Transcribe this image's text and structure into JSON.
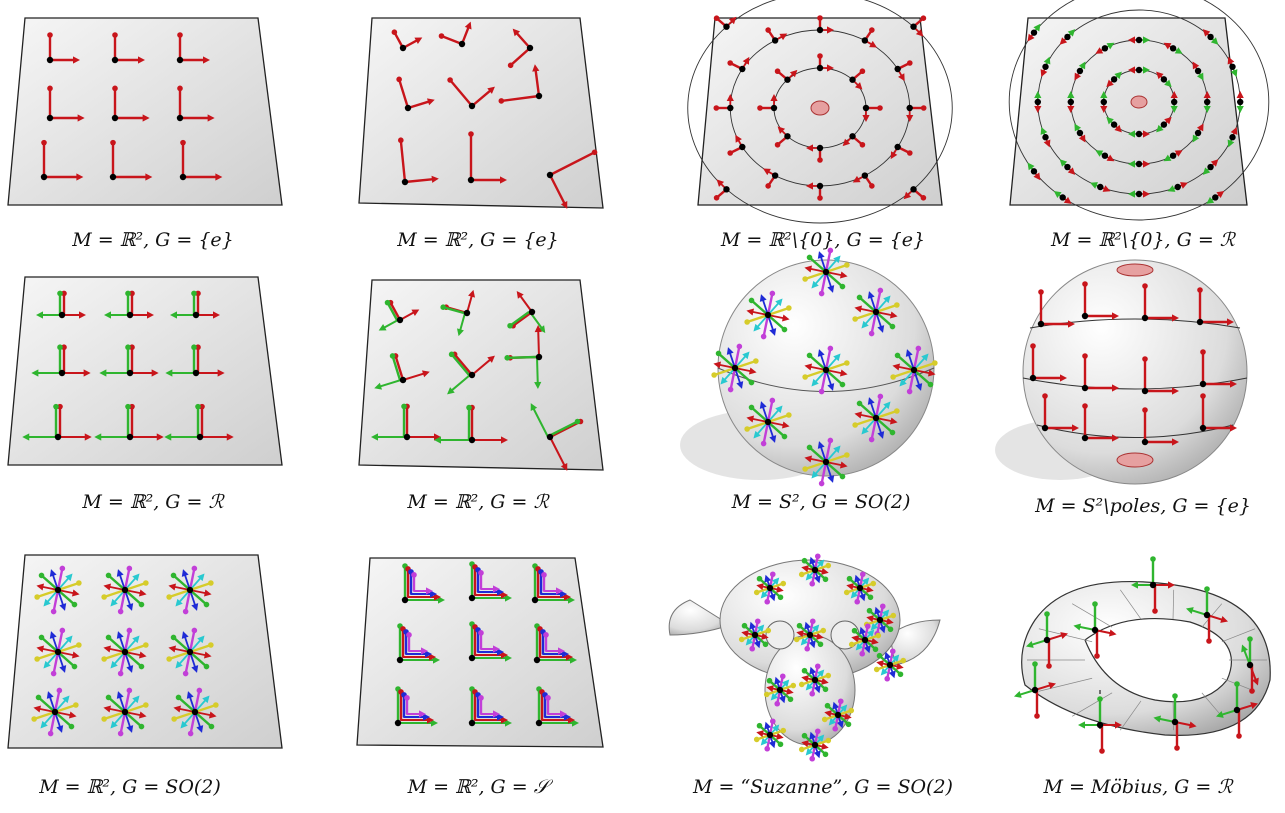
{
  "colors": {
    "red": "#c8151b",
    "green": "#2fb52f",
    "blue": "#1f2bd6",
    "magenta": "#c23fd8",
    "cyan": "#29c9d0",
    "yellow": "#d6cc2a",
    "black": "#000000",
    "plane": "#e8e8e8"
  },
  "captions": [
    "M = ℝ², G = {e}",
    "M = ℝ², G = {e}",
    "M = ℝ²\\{0}, G = {e}",
    "M = ℝ²\\{0}, G = ℛ",
    "M = ℝ², G = ℛ",
    "M = ℝ², G = ℛ",
    "M = S², G = SO(2)",
    "M = S²\\poles, G = {e}",
    "M = ℝ², G = SO(2)",
    "M = ℝ², G = 𝒮",
    "M = “Suzanne”, G = SO(2)",
    "M = Möbius, G = ℛ"
  ]
}
